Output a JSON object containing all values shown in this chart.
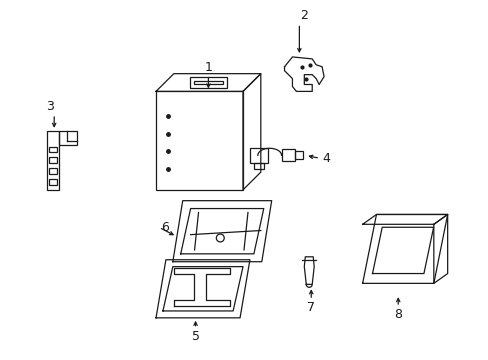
{
  "background": "#ffffff",
  "line_color": "#1a1a1a",
  "label_color": "#1a1a1a",
  "fig_width": 4.89,
  "fig_height": 3.6,
  "dpi": 100
}
